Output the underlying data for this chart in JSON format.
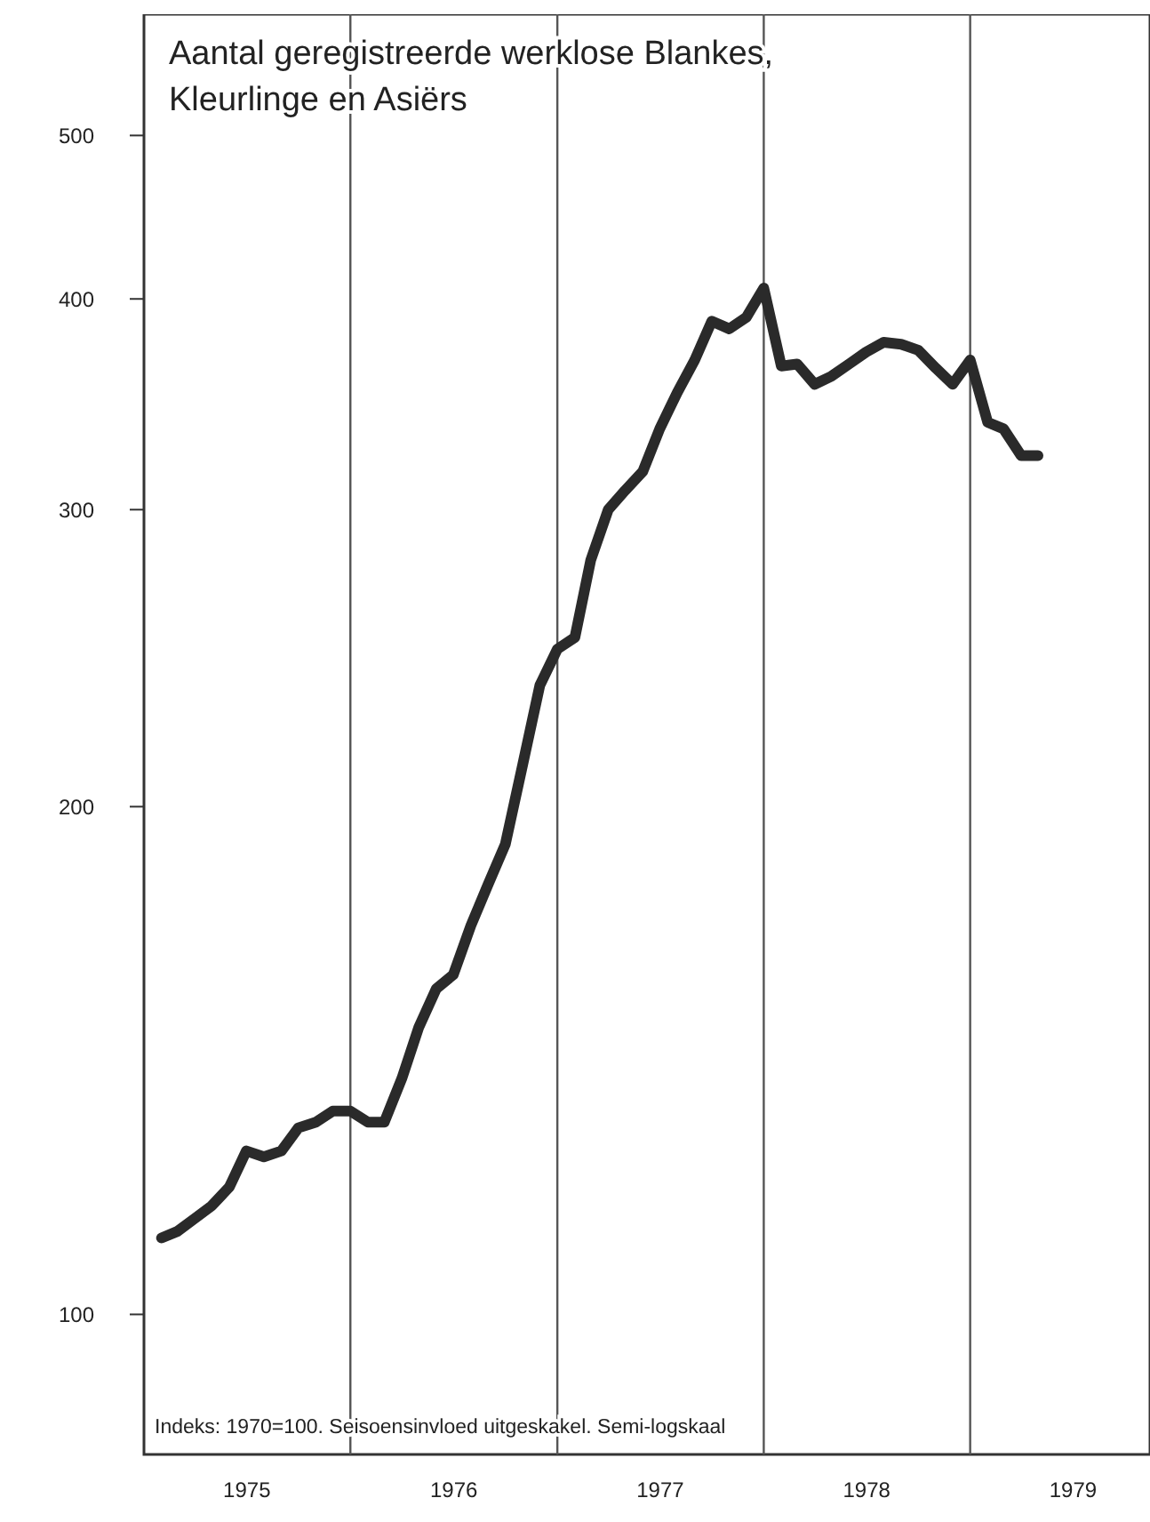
{
  "chart_data": {
    "type": "line",
    "title": "Aantal geregistreerde werklose Blankes, Kleurlinge en Asiërs",
    "annotations": [
      "Indeks: 1970=100. Seisoensinvloed uitgeskakel. Semi-logskaal"
    ],
    "x": [
      "1975-02",
      "1975-03",
      "1975-04",
      "1975-05",
      "1975-06",
      "1975-07",
      "1975-08",
      "1975-09",
      "1975-10",
      "1975-11",
      "1975-12",
      "1976-01",
      "1976-02",
      "1976-03",
      "1976-04",
      "1976-05",
      "1976-06",
      "1976-07",
      "1976-08",
      "1976-09",
      "1976-10",
      "1976-11",
      "1976-12",
      "1977-01",
      "1977-02",
      "1977-03",
      "1977-04",
      "1977-05",
      "1977-06",
      "1977-07",
      "1977-08",
      "1977-09",
      "1977-10",
      "1977-11",
      "1977-12",
      "1978-01",
      "1978-02",
      "1978-03",
      "1978-04",
      "1978-05",
      "1978-06",
      "1978-07",
      "1978-08",
      "1978-09",
      "1978-10",
      "1978-11",
      "1978-12",
      "1979-01",
      "1979-02",
      "1979-03",
      "1979-04",
      "1979-05"
    ],
    "series": [
      {
        "color": "#2a2a2a",
        "values": [
          111,
          112,
          114,
          116,
          119,
          125,
          124,
          125,
          129,
          130,
          132,
          132,
          130,
          130,
          138,
          148,
          156,
          159,
          170,
          180,
          190,
          212,
          236,
          248,
          252,
          280,
          300,
          308,
          316,
          335,
          352,
          368,
          388,
          384,
          390,
          406,
          365,
          366,
          356,
          360,
          366,
          372,
          377,
          376,
          373,
          364,
          356,
          368,
          338,
          335,
          323,
          323
        ]
      }
    ],
    "log": "y",
    "ylim": [
      83,
      590
    ],
    "yticks": [
      100,
      200,
      300,
      400,
      500
    ],
    "xlim": [
      "1975-01-01",
      "1979-11-15"
    ],
    "xticks": [
      {
        "value": "1975-07-02",
        "label": "1975"
      },
      {
        "value": "1976-07-02",
        "label": "1976"
      },
      {
        "value": "1977-07-02",
        "label": "1977"
      },
      {
        "value": "1978-07-02",
        "label": "1978"
      },
      {
        "value": "1979-07-02",
        "label": "1979"
      }
    ],
    "ref_lines": [
      {
        "axis": "x",
        "value": "1976-01-01",
        "color": "#555555"
      },
      {
        "axis": "x",
        "value": "1977-01-01",
        "color": "#555555"
      },
      {
        "axis": "x",
        "value": "1978-01-01",
        "color": "#555555"
      },
      {
        "axis": "x",
        "value": "1979-01-01",
        "color": "#555555"
      }
    ],
    "line_style": "solid",
    "marker": "none",
    "grid": false
  }
}
